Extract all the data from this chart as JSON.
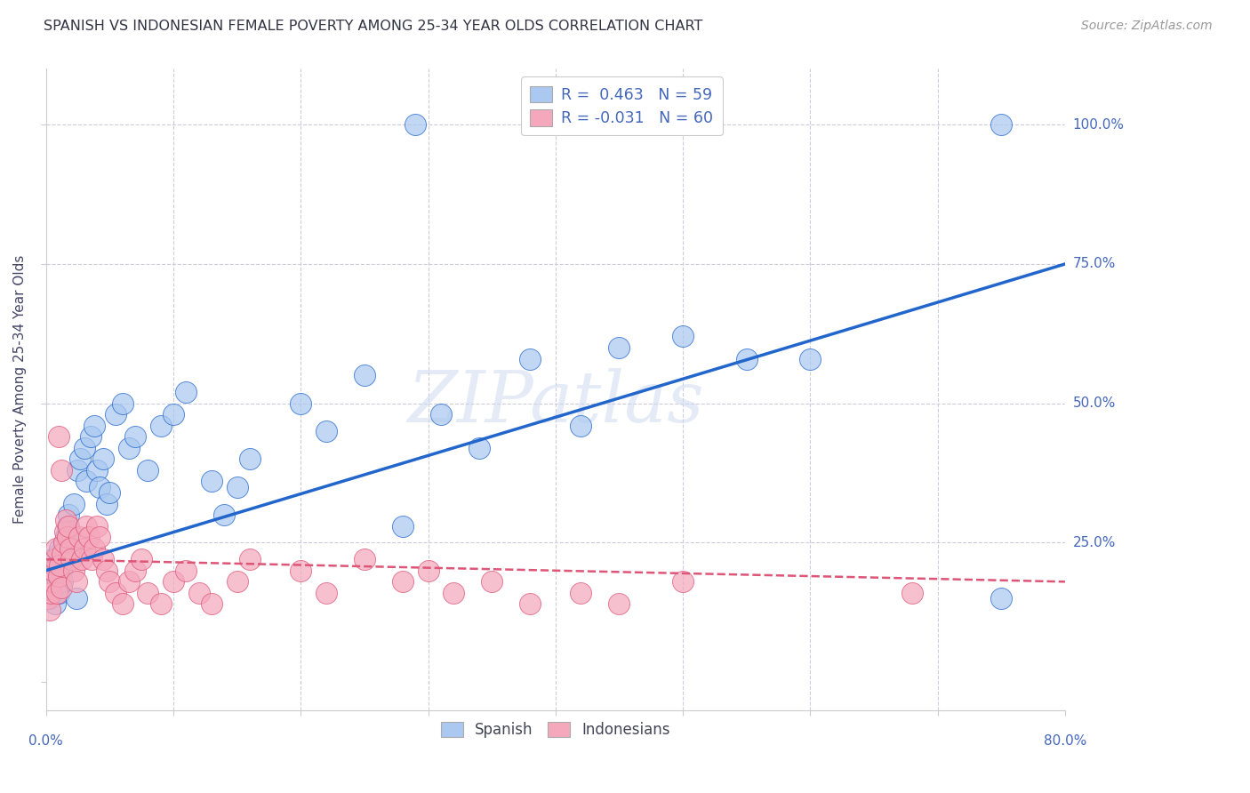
{
  "title": "SPANISH VS INDONESIAN FEMALE POVERTY AMONG 25-34 YEAR OLDS CORRELATION CHART",
  "source": "Source: ZipAtlas.com",
  "ylabel": "Female Poverty Among 25-34 Year Olds",
  "watermark": "ZIPatlas",
  "legend_line1": "R =  0.463   N = 59",
  "legend_line2": "R = -0.031   N = 60",
  "legend_label_spanish": "Spanish",
  "legend_label_indonesian": "Indonesians",
  "spanish_color": "#aac8f0",
  "indonesian_color": "#f5a8bc",
  "spanish_line_color": "#2266cc",
  "indonesian_line_color": "#dd5577",
  "title_color": "#333344",
  "axis_label_color": "#4466bb",
  "xmin": 0.0,
  "xmax": 0.8,
  "ymin": -0.05,
  "ymax": 1.1,
  "spanish_x": [
    0.002,
    0.003,
    0.004,
    0.005,
    0.006,
    0.007,
    0.008,
    0.009,
    0.01,
    0.01,
    0.011,
    0.012,
    0.013,
    0.014,
    0.015,
    0.016,
    0.017,
    0.018,
    0.019,
    0.02,
    0.022,
    0.024,
    0.025,
    0.027,
    0.03,
    0.032,
    0.035,
    0.038,
    0.04,
    0.042,
    0.045,
    0.048,
    0.05,
    0.055,
    0.06,
    0.065,
    0.07,
    0.08,
    0.09,
    0.1,
    0.11,
    0.13,
    0.14,
    0.15,
    0.16,
    0.2,
    0.22,
    0.25,
    0.28,
    0.31,
    0.34,
    0.38,
    0.42,
    0.45,
    0.5,
    0.55,
    0.6,
    0.75,
    0.29
  ],
  "spanish_y": [
    0.18,
    0.15,
    0.2,
    0.22,
    0.17,
    0.14,
    0.19,
    0.21,
    0.16,
    0.23,
    0.24,
    0.2,
    0.18,
    0.22,
    0.25,
    0.26,
    0.28,
    0.3,
    0.27,
    0.24,
    0.32,
    0.15,
    0.38,
    0.4,
    0.42,
    0.36,
    0.44,
    0.46,
    0.38,
    0.35,
    0.4,
    0.32,
    0.34,
    0.48,
    0.5,
    0.42,
    0.44,
    0.38,
    0.46,
    0.48,
    0.52,
    0.36,
    0.3,
    0.35,
    0.4,
    0.5,
    0.45,
    0.55,
    0.28,
    0.48,
    0.42,
    0.58,
    0.46,
    0.6,
    0.62,
    0.58,
    0.58,
    0.15,
    1.0
  ],
  "indonesian_x": [
    0.002,
    0.003,
    0.004,
    0.005,
    0.006,
    0.007,
    0.008,
    0.009,
    0.01,
    0.011,
    0.012,
    0.013,
    0.014,
    0.015,
    0.016,
    0.017,
    0.018,
    0.019,
    0.02,
    0.022,
    0.024,
    0.026,
    0.028,
    0.03,
    0.032,
    0.034,
    0.036,
    0.038,
    0.04,
    0.042,
    0.045,
    0.048,
    0.05,
    0.055,
    0.06,
    0.065,
    0.07,
    0.075,
    0.08,
    0.09,
    0.1,
    0.11,
    0.12,
    0.13,
    0.15,
    0.16,
    0.2,
    0.22,
    0.25,
    0.28,
    0.3,
    0.32,
    0.35,
    0.38,
    0.42,
    0.45,
    0.5,
    0.68,
    0.01,
    0.012
  ],
  "indonesian_y": [
    0.15,
    0.13,
    0.16,
    0.18,
    0.2,
    0.22,
    0.24,
    0.16,
    0.19,
    0.21,
    0.17,
    0.23,
    0.25,
    0.27,
    0.29,
    0.26,
    0.28,
    0.24,
    0.22,
    0.2,
    0.18,
    0.26,
    0.22,
    0.24,
    0.28,
    0.26,
    0.22,
    0.24,
    0.28,
    0.26,
    0.22,
    0.2,
    0.18,
    0.16,
    0.14,
    0.18,
    0.2,
    0.22,
    0.16,
    0.14,
    0.18,
    0.2,
    0.16,
    0.14,
    0.18,
    0.22,
    0.2,
    0.16,
    0.22,
    0.18,
    0.2,
    0.16,
    0.18,
    0.14,
    0.16,
    0.14,
    0.18,
    0.16,
    0.44,
    0.38
  ],
  "spanish_outlier2_x": [
    0.75
  ],
  "spanish_outlier2_y": [
    1.0
  ],
  "grid_color": "#ccccdd",
  "spine_color": "#cccccc"
}
